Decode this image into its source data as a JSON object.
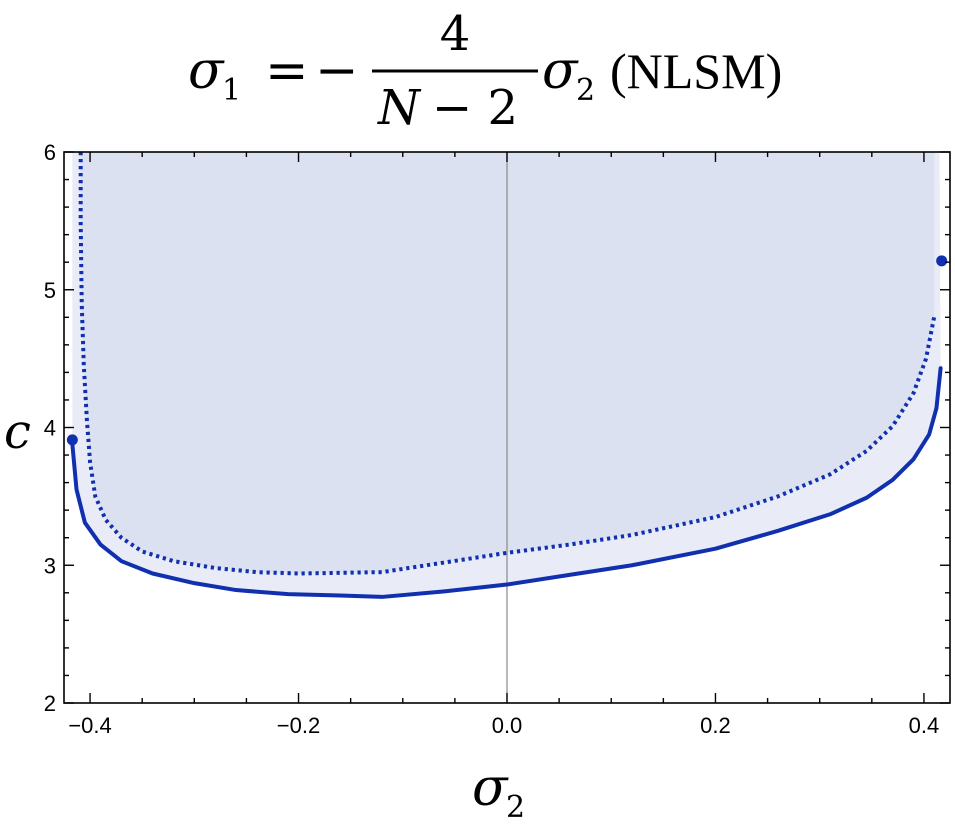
{
  "chart_data": {
    "type": "line",
    "title": {
      "lhs_symbol": "σ",
      "lhs_subscript": "1",
      "equals": "=",
      "minus": "−",
      "numerator": "4",
      "denominator_var": "N",
      "denominator_rest": "− 2",
      "rhs_symbol": "σ",
      "rhs_subscript": "2",
      "suffix": "(NLSM)"
    },
    "xlabel": {
      "symbol": "σ",
      "subscript": "2"
    },
    "ylabel": "c",
    "xlim": [
      -0.425,
      0.425
    ],
    "ylim": [
      2,
      6
    ],
    "xticks": [
      -0.4,
      -0.2,
      0.0,
      0.2,
      0.4
    ],
    "xtick_labels": [
      "−0.4",
      "−0.2",
      "0.0",
      "0.2",
      "0.4"
    ],
    "yticks": [
      2,
      3,
      4,
      5,
      6
    ],
    "ytick_labels": [
      "2",
      "3",
      "4",
      "5",
      "6"
    ],
    "grid": false,
    "zero_line": "x",
    "colors": {
      "line": "#1030b0",
      "region_outer": "#e9ecf7",
      "region_inner": "#dce1f2",
      "axis": "#000000",
      "zero_line": "#888888"
    },
    "series": [
      {
        "style": "solid",
        "x": [
          -0.417,
          -0.413,
          -0.405,
          -0.39,
          -0.37,
          -0.34,
          -0.3,
          -0.26,
          -0.21,
          -0.16,
          -0.12,
          -0.06,
          0.0,
          0.06,
          0.12,
          0.2,
          0.26,
          0.31,
          0.345,
          0.37,
          0.39,
          0.405,
          0.412,
          0.416
        ],
        "y": [
          3.88,
          3.55,
          3.31,
          3.15,
          3.03,
          2.94,
          2.87,
          2.82,
          2.79,
          2.78,
          2.77,
          2.81,
          2.86,
          2.93,
          3.0,
          3.12,
          3.25,
          3.37,
          3.49,
          3.62,
          3.77,
          3.95,
          4.14,
          4.43
        ]
      },
      {
        "style": "dotted",
        "x": [
          -0.409,
          -0.409,
          -0.408,
          -0.406,
          -0.403,
          -0.4,
          -0.395,
          -0.385,
          -0.37,
          -0.35,
          -0.32,
          -0.28,
          -0.24,
          -0.2,
          -0.12,
          -0.06,
          0.0,
          0.06,
          0.12,
          0.2,
          0.26,
          0.31,
          0.345,
          0.37,
          0.39,
          0.402,
          0.41
        ],
        "y": [
          6.0,
          5.5,
          4.9,
          4.45,
          4.05,
          3.75,
          3.5,
          3.33,
          3.2,
          3.1,
          3.03,
          2.98,
          2.95,
          2.94,
          2.95,
          3.02,
          3.09,
          3.15,
          3.22,
          3.35,
          3.5,
          3.66,
          3.83,
          4.01,
          4.25,
          4.5,
          4.81
        ]
      }
    ],
    "points": [
      {
        "x": -0.417,
        "y": 3.91
      },
      {
        "x": 0.417,
        "y": 5.21
      }
    ],
    "regions": [
      {
        "boundary": "solid",
        "extends_to": "ylim_top",
        "right_edge_x": 0.415
      },
      {
        "boundary": "dotted",
        "extends_to": "ylim_top"
      }
    ]
  }
}
